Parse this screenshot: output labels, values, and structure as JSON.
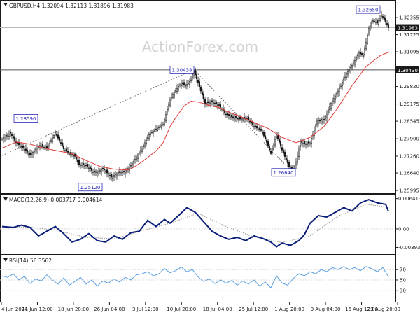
{
  "header": {
    "symbol_info": "GBPUSD,H4  1.32094 1.32113 1.31896 1.31983",
    "watermark": "ActionForex.com"
  },
  "colors": {
    "candle": "#1a1a1a",
    "ma": "#e53935",
    "macd": "#0a1f7a",
    "signal": "#9a9a9a",
    "rsi": "#5aa0e0",
    "grid": "#d9d9d9",
    "hline": "#555555",
    "label_border": "#2a2ab8"
  },
  "x_axis": {
    "labels": [
      "4 Jun 2024",
      "11 Jun 12:00",
      "18 Jun 20:00",
      "26 Jun 04:00",
      "3 Jul 12:00",
      "10 Jul 20:00",
      "18 Jul 04:00",
      "25 Jul 12:00",
      "1 Aug 20:00",
      "9 Aug 04:00",
      "16 Aug 12:00",
      "23 Aug 20:00"
    ]
  },
  "chart_data": [
    {
      "type": "candlestick",
      "title": "GBPUSD,H4  1.32094 1.32113 1.31896 1.31983",
      "ylim": [
        1.2592,
        1.3295
      ],
      "y_ticks": [
        "1.32355",
        "1.31725",
        "1.31095",
        "1.30430",
        "1.29820",
        "1.29175",
        "1.28545",
        "1.27900",
        "1.27260",
        "1.26640",
        "1.25995"
      ],
      "current_price": "1.31983",
      "horizontal_line": "1.30430",
      "annotations": [
        "1.28590",
        "1.25120",
        "1.30438",
        "1.26640",
        "1.32650"
      ],
      "series": [
        {
          "name": "GBPUSD",
          "type": "candle",
          "keypoints": [
            [
              0,
              1.279
            ],
            [
              6,
              1.281
            ],
            [
              10,
              1.2775
            ],
            [
              14,
              1.276
            ],
            [
              20,
              1.273
            ],
            [
              27,
              1.2765
            ],
            [
              32,
              1.2755
            ],
            [
              38,
              1.2812
            ],
            [
              44,
              1.2752
            ],
            [
              48,
              1.2735
            ],
            [
              52,
              1.2725
            ],
            [
              55,
              1.2695
            ],
            [
              60,
              1.2692
            ],
            [
              65,
              1.2668
            ],
            [
              68,
              1.2665
            ],
            [
              72,
              1.268
            ],
            [
              78,
              1.2648
            ],
            [
              83,
              1.2665
            ],
            [
              88,
              1.2668
            ],
            [
              93,
              1.2698
            ],
            [
              100,
              1.2755
            ],
            [
              105,
              1.2805
            ],
            [
              110,
              1.2825
            ],
            [
              115,
              1.2842
            ],
            [
              120,
              1.2935
            ],
            [
              125,
              1.2975
            ],
            [
              128,
              1.2995
            ],
            [
              131,
              1.2985
            ],
            [
              134,
              1.3
            ],
            [
              137,
              1.304
            ],
            [
              140,
              1.2995
            ],
            [
              145,
              1.292
            ],
            [
              150,
              1.2925
            ],
            [
              155,
              1.2912
            ],
            [
              160,
              1.288
            ],
            [
              165,
              1.2868
            ],
            [
              170,
              1.2862
            ],
            [
              175,
              1.2865
            ],
            [
              180,
              1.2835
            ],
            [
              185,
              1.282
            ],
            [
              188,
              1.279
            ],
            [
              192,
              1.2735
            ],
            [
              196,
              1.2805
            ],
            [
              200,
              1.2748
            ],
            [
              205,
              1.2688
            ],
            [
              208,
              1.2672
            ],
            [
              210,
              1.2705
            ],
            [
              213,
              1.278
            ],
            [
              216,
              1.277
            ],
            [
              220,
              1.2775
            ],
            [
              225,
              1.2855
            ],
            [
              230,
              1.286
            ],
            [
              235,
              1.292
            ],
            [
              240,
              1.2965
            ],
            [
              245,
              1.302
            ],
            [
              250,
              1.306
            ],
            [
              255,
              1.3105
            ],
            [
              258,
              1.3095
            ],
            [
              262,
              1.3195
            ],
            [
              265,
              1.3225
            ],
            [
              268,
              1.3215
            ],
            [
              271,
              1.3245
            ],
            [
              274,
              1.322
            ],
            [
              276,
              1.3198
            ]
          ]
        },
        {
          "name": "Moving Average",
          "type": "line",
          "keypoints": [
            [
              0,
              1.2755
            ],
            [
              10,
              1.2778
            ],
            [
              20,
              1.277
            ],
            [
              30,
              1.2755
            ],
            [
              40,
              1.2745
            ],
            [
              50,
              1.2735
            ],
            [
              60,
              1.271
            ],
            [
              70,
              1.2688
            ],
            [
              80,
              1.2678
            ],
            [
              90,
              1.2675
            ],
            [
              95,
              1.2688
            ],
            [
              100,
              1.2705
            ],
            [
              110,
              1.2745
            ],
            [
              115,
              1.2775
            ],
            [
              120,
              1.2835
            ],
            [
              125,
              1.2875
            ],
            [
              130,
              1.291
            ],
            [
              135,
              1.2928
            ],
            [
              140,
              1.2925
            ],
            [
              145,
              1.2918
            ],
            [
              150,
              1.291
            ],
            [
              155,
              1.2905
            ],
            [
              160,
              1.2892
            ],
            [
              170,
              1.2872
            ],
            [
              180,
              1.285
            ],
            [
              190,
              1.2828
            ],
            [
              200,
              1.2795
            ],
            [
              210,
              1.2775
            ],
            [
              220,
              1.2795
            ],
            [
              230,
              1.2835
            ],
            [
              240,
              1.2905
            ],
            [
              250,
              1.2985
            ],
            [
              260,
              1.3055
            ],
            [
              270,
              1.3095
            ],
            [
              276,
              1.3108
            ]
          ]
        }
      ]
    },
    {
      "type": "line",
      "title": "MACD(12,26,9) 0.003717 0.004614",
      "ylim": [
        -0.0052,
        0.0071
      ],
      "y_ticks": [
        "0.006413",
        "0.00",
        "-0.003938"
      ],
      "series": [
        {
          "name": "MACD",
          "keypoints": [
            [
              0,
              0.0005
            ],
            [
              8,
              0.0003
            ],
            [
              14,
              0.0008
            ],
            [
              20,
              0.0003
            ],
            [
              26,
              -0.0015
            ],
            [
              32,
              -0.0005
            ],
            [
              38,
              0.0005
            ],
            [
              44,
              -0.001
            ],
            [
              50,
              -0.0028
            ],
            [
              56,
              -0.0022
            ],
            [
              62,
              -0.001
            ],
            [
              68,
              -0.0025
            ],
            [
              74,
              -0.0028
            ],
            [
              80,
              -0.0015
            ],
            [
              86,
              -0.0022
            ],
            [
              92,
              -0.0008
            ],
            [
              98,
              -0.0005
            ],
            [
              104,
              0.0018
            ],
            [
              110,
              0.0005
            ],
            [
              116,
              0.002
            ],
            [
              120,
              0.0012
            ],
            [
              126,
              0.0028
            ],
            [
              132,
              0.0045
            ],
            [
              138,
              0.0035
            ],
            [
              144,
              0.0015
            ],
            [
              150,
              -0.0005
            ],
            [
              156,
              -0.0015
            ],
            [
              162,
              -0.0022
            ],
            [
              168,
              -0.0018
            ],
            [
              174,
              -0.0025
            ],
            [
              180,
              -0.0015
            ],
            [
              186,
              -0.002
            ],
            [
              192,
              -0.0028
            ],
            [
              196,
              -0.0038
            ],
            [
              200,
              -0.003
            ],
            [
              206,
              -0.0035
            ],
            [
              212,
              -0.0025
            ],
            [
              216,
              -0.0012
            ],
            [
              220,
              0.0012
            ],
            [
              226,
              0.0028
            ],
            [
              232,
              0.0025
            ],
            [
              238,
              0.0035
            ],
            [
              244,
              0.0045
            ],
            [
              250,
              0.0038
            ],
            [
              256,
              0.0055
            ],
            [
              262,
              0.0062
            ],
            [
              268,
              0.0055
            ],
            [
              274,
              0.0052
            ],
            [
              276,
              0.0037
            ]
          ]
        },
        {
          "name": "Signal",
          "keypoints": [
            [
              0,
              0.0004
            ],
            [
              20,
              0.0004
            ],
            [
              40,
              -0.0004
            ],
            [
              60,
              -0.0018
            ],
            [
              80,
              -0.0021
            ],
            [
              100,
              -0.0004
            ],
            [
              120,
              0.0012
            ],
            [
              140,
              0.0033
            ],
            [
              160,
              0.0005
            ],
            [
              180,
              -0.0017
            ],
            [
              200,
              -0.0029
            ],
            [
              220,
              -0.0015
            ],
            [
              240,
              0.0027
            ],
            [
              260,
              0.0052
            ],
            [
              276,
              0.0046
            ]
          ]
        }
      ]
    },
    {
      "type": "line",
      "title": "RSI(14) 56.3562",
      "ylim": [
        8,
        96
      ],
      "y_ticks": [
        "70",
        "50",
        "30"
      ],
      "series": [
        {
          "name": "RSI",
          "keypoints": [
            [
              0,
              58
            ],
            [
              4,
              55
            ],
            [
              8,
              62
            ],
            [
              12,
              50
            ],
            [
              16,
              57
            ],
            [
              20,
              43
            ],
            [
              24,
              52
            ],
            [
              28,
              48
            ],
            [
              32,
              60
            ],
            [
              36,
              50
            ],
            [
              40,
              42
            ],
            [
              44,
              54
            ],
            [
              48,
              40
            ],
            [
              52,
              47
            ],
            [
              56,
              55
            ],
            [
              60,
              42
            ],
            [
              64,
              50
            ],
            [
              68,
              38
            ],
            [
              72,
              48
            ],
            [
              76,
              44
            ],
            [
              80,
              52
            ],
            [
              84,
              46
            ],
            [
              88,
              55
            ],
            [
              92,
              50
            ],
            [
              96,
              60
            ],
            [
              100,
              62
            ],
            [
              104,
              66
            ],
            [
              108,
              58
            ],
            [
              112,
              62
            ],
            [
              116,
              72
            ],
            [
              120,
              64
            ],
            [
              124,
              68
            ],
            [
              128,
              75
            ],
            [
              132,
              66
            ],
            [
              136,
              70
            ],
            [
              140,
              56
            ],
            [
              144,
              47
            ],
            [
              148,
              52
            ],
            [
              152,
              43
            ],
            [
              156,
              50
            ],
            [
              160,
              44
            ],
            [
              164,
              49
            ],
            [
              168,
              40
            ],
            [
              172,
              48
            ],
            [
              176,
              42
            ],
            [
              180,
              50
            ],
            [
              184,
              38
            ],
            [
              188,
              46
            ],
            [
              192,
              35
            ],
            [
              196,
              58
            ],
            [
              200,
              44
            ],
            [
              204,
              40
            ],
            [
              208,
              53
            ],
            [
              212,
              62
            ],
            [
              216,
              58
            ],
            [
              220,
              66
            ],
            [
              224,
              62
            ],
            [
              228,
              70
            ],
            [
              232,
              66
            ],
            [
              236,
              74
            ],
            [
              240,
              70
            ],
            [
              244,
              76
            ],
            [
              248,
              70
            ],
            [
              252,
              74
            ],
            [
              256,
              68
            ],
            [
              260,
              76
            ],
            [
              264,
              72
            ],
            [
              268,
              66
            ],
            [
              272,
              74
            ],
            [
              276,
              56
            ]
          ]
        }
      ]
    }
  ]
}
